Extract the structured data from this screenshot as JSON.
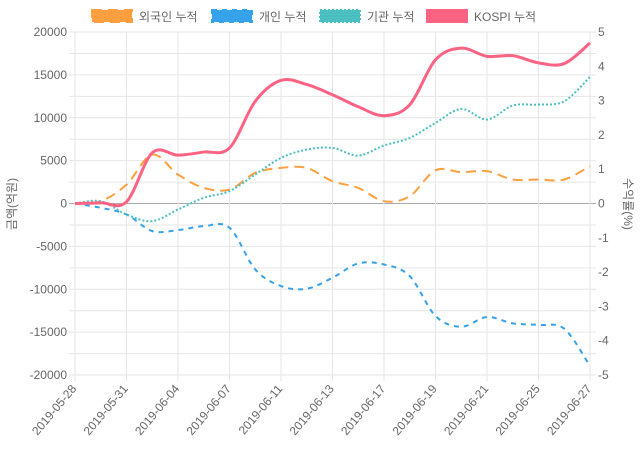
{
  "chart_data": {
    "type": "line",
    "legend_position": "top",
    "x_tick_labels": [
      "2019-05-28",
      "2019-05-31",
      "2019-06-04",
      "2019-06-07",
      "2019-06-11",
      "2019-06-13",
      "2019-06-17",
      "2019-06-19",
      "2019-06-21",
      "2019-06-25",
      "2019-06-27"
    ],
    "y_left": {
      "label": "금액(억원)",
      "min": -20000,
      "max": 20000,
      "step": 5000,
      "ticks": [
        "20000",
        "15000",
        "10000",
        "5000",
        "0",
        "-5000",
        "-10000",
        "-15000",
        "-20000"
      ]
    },
    "y_right": {
      "label": "수익률(%)",
      "min": -5,
      "max": 5,
      "step": 1,
      "ticks": [
        "5",
        "4",
        "3",
        "2",
        "1",
        "0",
        "-1",
        "-2",
        "-3",
        "-4",
        "-5"
      ]
    },
    "grid": true,
    "series": [
      {
        "name": "외국인 누적",
        "axis": "left",
        "color": "#ff9f40",
        "dash": "dashed",
        "values": [
          0,
          270,
          2200,
          5700,
          3380,
          1820,
          1630,
          3570,
          4150,
          4150,
          2600,
          1820,
          270,
          850,
          3880,
          3650,
          3770,
          2800,
          2800,
          2800,
          4350
        ]
      },
      {
        "name": "개인 누적",
        "axis": "left",
        "color": "#36a2eb",
        "dash": "short-dashed",
        "values": [
          0,
          -500,
          -1280,
          -3220,
          -3100,
          -2640,
          -2830,
          -7690,
          -9630,
          -9940,
          -8660,
          -6990,
          -7110,
          -8470,
          -13120,
          -14370,
          -13240,
          -13980,
          -14170,
          -14600,
          -18950
        ]
      },
      {
        "name": "기관 누적",
        "axis": "left",
        "color": "#4bc0c0",
        "dash": "dotted",
        "values": [
          0,
          270,
          -1280,
          -2060,
          -700,
          660,
          1440,
          3380,
          5320,
          6290,
          6480,
          5590,
          6760,
          7650,
          9400,
          11030,
          9790,
          11420,
          11530,
          11920,
          14760
        ]
      },
      {
        "name": "KOSPI 누적",
        "axis": "right",
        "color": "#ff6384",
        "dash": "solid",
        "values": [
          0,
          0.02,
          0.05,
          1.48,
          1.41,
          1.5,
          1.62,
          2.98,
          3.59,
          3.47,
          3.17,
          2.82,
          2.56,
          2.88,
          4.19,
          4.53,
          4.29,
          4.31,
          4.1,
          4.08,
          4.68
        ]
      }
    ]
  }
}
